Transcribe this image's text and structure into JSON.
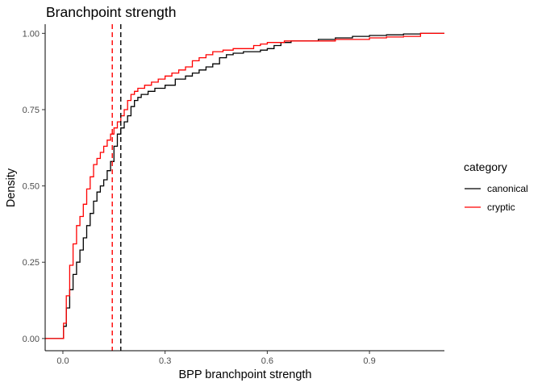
{
  "chart_data": {
    "type": "line",
    "subtype": "ecdf",
    "title": "Branchpoint strength",
    "xlabel": "BPP branchpoint strength",
    "ylabel": "Density",
    "xlim": [
      -0.052,
      1.12
    ],
    "ylim": [
      -0.04,
      1.03
    ],
    "x_ticks": [
      0.0,
      0.3,
      0.6,
      0.9
    ],
    "x_tick_labels": [
      "0.0",
      "0.3",
      "0.6",
      "0.9"
    ],
    "y_ticks": [
      0.0,
      0.25,
      0.5,
      0.75,
      1.0
    ],
    "y_tick_labels": [
      "0.00",
      "0.25",
      "0.50",
      "0.75",
      "1.00"
    ],
    "grid": false,
    "legend_title": "category",
    "legend_position": "right",
    "series": [
      {
        "name": "canonical",
        "color": "#000000",
        "median_line_x": 0.17,
        "points": [
          [
            -0.06,
            0.0
          ],
          [
            0.0,
            0.0
          ],
          [
            0.002,
            0.04
          ],
          [
            0.01,
            0.1
          ],
          [
            0.02,
            0.16
          ],
          [
            0.03,
            0.21
          ],
          [
            0.04,
            0.25
          ],
          [
            0.05,
            0.29
          ],
          [
            0.06,
            0.33
          ],
          [
            0.07,
            0.37
          ],
          [
            0.08,
            0.41
          ],
          [
            0.09,
            0.45
          ],
          [
            0.1,
            0.48
          ],
          [
            0.11,
            0.5
          ],
          [
            0.12,
            0.52
          ],
          [
            0.13,
            0.55
          ],
          [
            0.14,
            0.58
          ],
          [
            0.15,
            0.63
          ],
          [
            0.16,
            0.67
          ],
          [
            0.17,
            0.69
          ],
          [
            0.18,
            0.71
          ],
          [
            0.19,
            0.73
          ],
          [
            0.2,
            0.76
          ],
          [
            0.21,
            0.78
          ],
          [
            0.22,
            0.79
          ],
          [
            0.23,
            0.8
          ],
          [
            0.25,
            0.81
          ],
          [
            0.27,
            0.82
          ],
          [
            0.3,
            0.83
          ],
          [
            0.33,
            0.85
          ],
          [
            0.36,
            0.86
          ],
          [
            0.38,
            0.87
          ],
          [
            0.4,
            0.88
          ],
          [
            0.42,
            0.89
          ],
          [
            0.44,
            0.9
          ],
          [
            0.46,
            0.92
          ],
          [
            0.48,
            0.93
          ],
          [
            0.5,
            0.935
          ],
          [
            0.53,
            0.94
          ],
          [
            0.56,
            0.94
          ],
          [
            0.58,
            0.945
          ],
          [
            0.6,
            0.95
          ],
          [
            0.62,
            0.96
          ],
          [
            0.64,
            0.97
          ],
          [
            0.67,
            0.975
          ],
          [
            0.7,
            0.975
          ],
          [
            0.75,
            0.98
          ],
          [
            0.8,
            0.985
          ],
          [
            0.85,
            0.99
          ],
          [
            0.9,
            0.993
          ],
          [
            0.95,
            0.995
          ],
          [
            1.0,
            0.998
          ],
          [
            1.05,
            1.0
          ],
          [
            1.12,
            1.0
          ]
        ]
      },
      {
        "name": "cryptic",
        "color": "#ff0000",
        "median_line_x": 0.145,
        "points": [
          [
            -0.06,
            0.0
          ],
          [
            0.0,
            0.0
          ],
          [
            0.002,
            0.05
          ],
          [
            0.01,
            0.14
          ],
          [
            0.02,
            0.24
          ],
          [
            0.03,
            0.31
          ],
          [
            0.04,
            0.37
          ],
          [
            0.05,
            0.4
          ],
          [
            0.06,
            0.44
          ],
          [
            0.07,
            0.49
          ],
          [
            0.08,
            0.53
          ],
          [
            0.09,
            0.57
          ],
          [
            0.1,
            0.59
          ],
          [
            0.11,
            0.61
          ],
          [
            0.12,
            0.63
          ],
          [
            0.13,
            0.65
          ],
          [
            0.14,
            0.67
          ],
          [
            0.15,
            0.69
          ],
          [
            0.16,
            0.71
          ],
          [
            0.17,
            0.73
          ],
          [
            0.18,
            0.75
          ],
          [
            0.19,
            0.78
          ],
          [
            0.2,
            0.8
          ],
          [
            0.21,
            0.81
          ],
          [
            0.22,
            0.82
          ],
          [
            0.24,
            0.83
          ],
          [
            0.26,
            0.84
          ],
          [
            0.28,
            0.85
          ],
          [
            0.3,
            0.86
          ],
          [
            0.32,
            0.87
          ],
          [
            0.34,
            0.88
          ],
          [
            0.36,
            0.89
          ],
          [
            0.38,
            0.91
          ],
          [
            0.4,
            0.92
          ],
          [
            0.42,
            0.93
          ],
          [
            0.44,
            0.94
          ],
          [
            0.47,
            0.945
          ],
          [
            0.5,
            0.95
          ],
          [
            0.53,
            0.95
          ],
          [
            0.56,
            0.96
          ],
          [
            0.58,
            0.965
          ],
          [
            0.6,
            0.97
          ],
          [
            0.65,
            0.975
          ],
          [
            0.7,
            0.975
          ],
          [
            0.8,
            0.98
          ],
          [
            0.9,
            0.985
          ],
          [
            0.95,
            0.988
          ],
          [
            1.0,
            0.99
          ],
          [
            1.05,
            1.0
          ],
          [
            1.12,
            1.0
          ]
        ]
      }
    ]
  }
}
